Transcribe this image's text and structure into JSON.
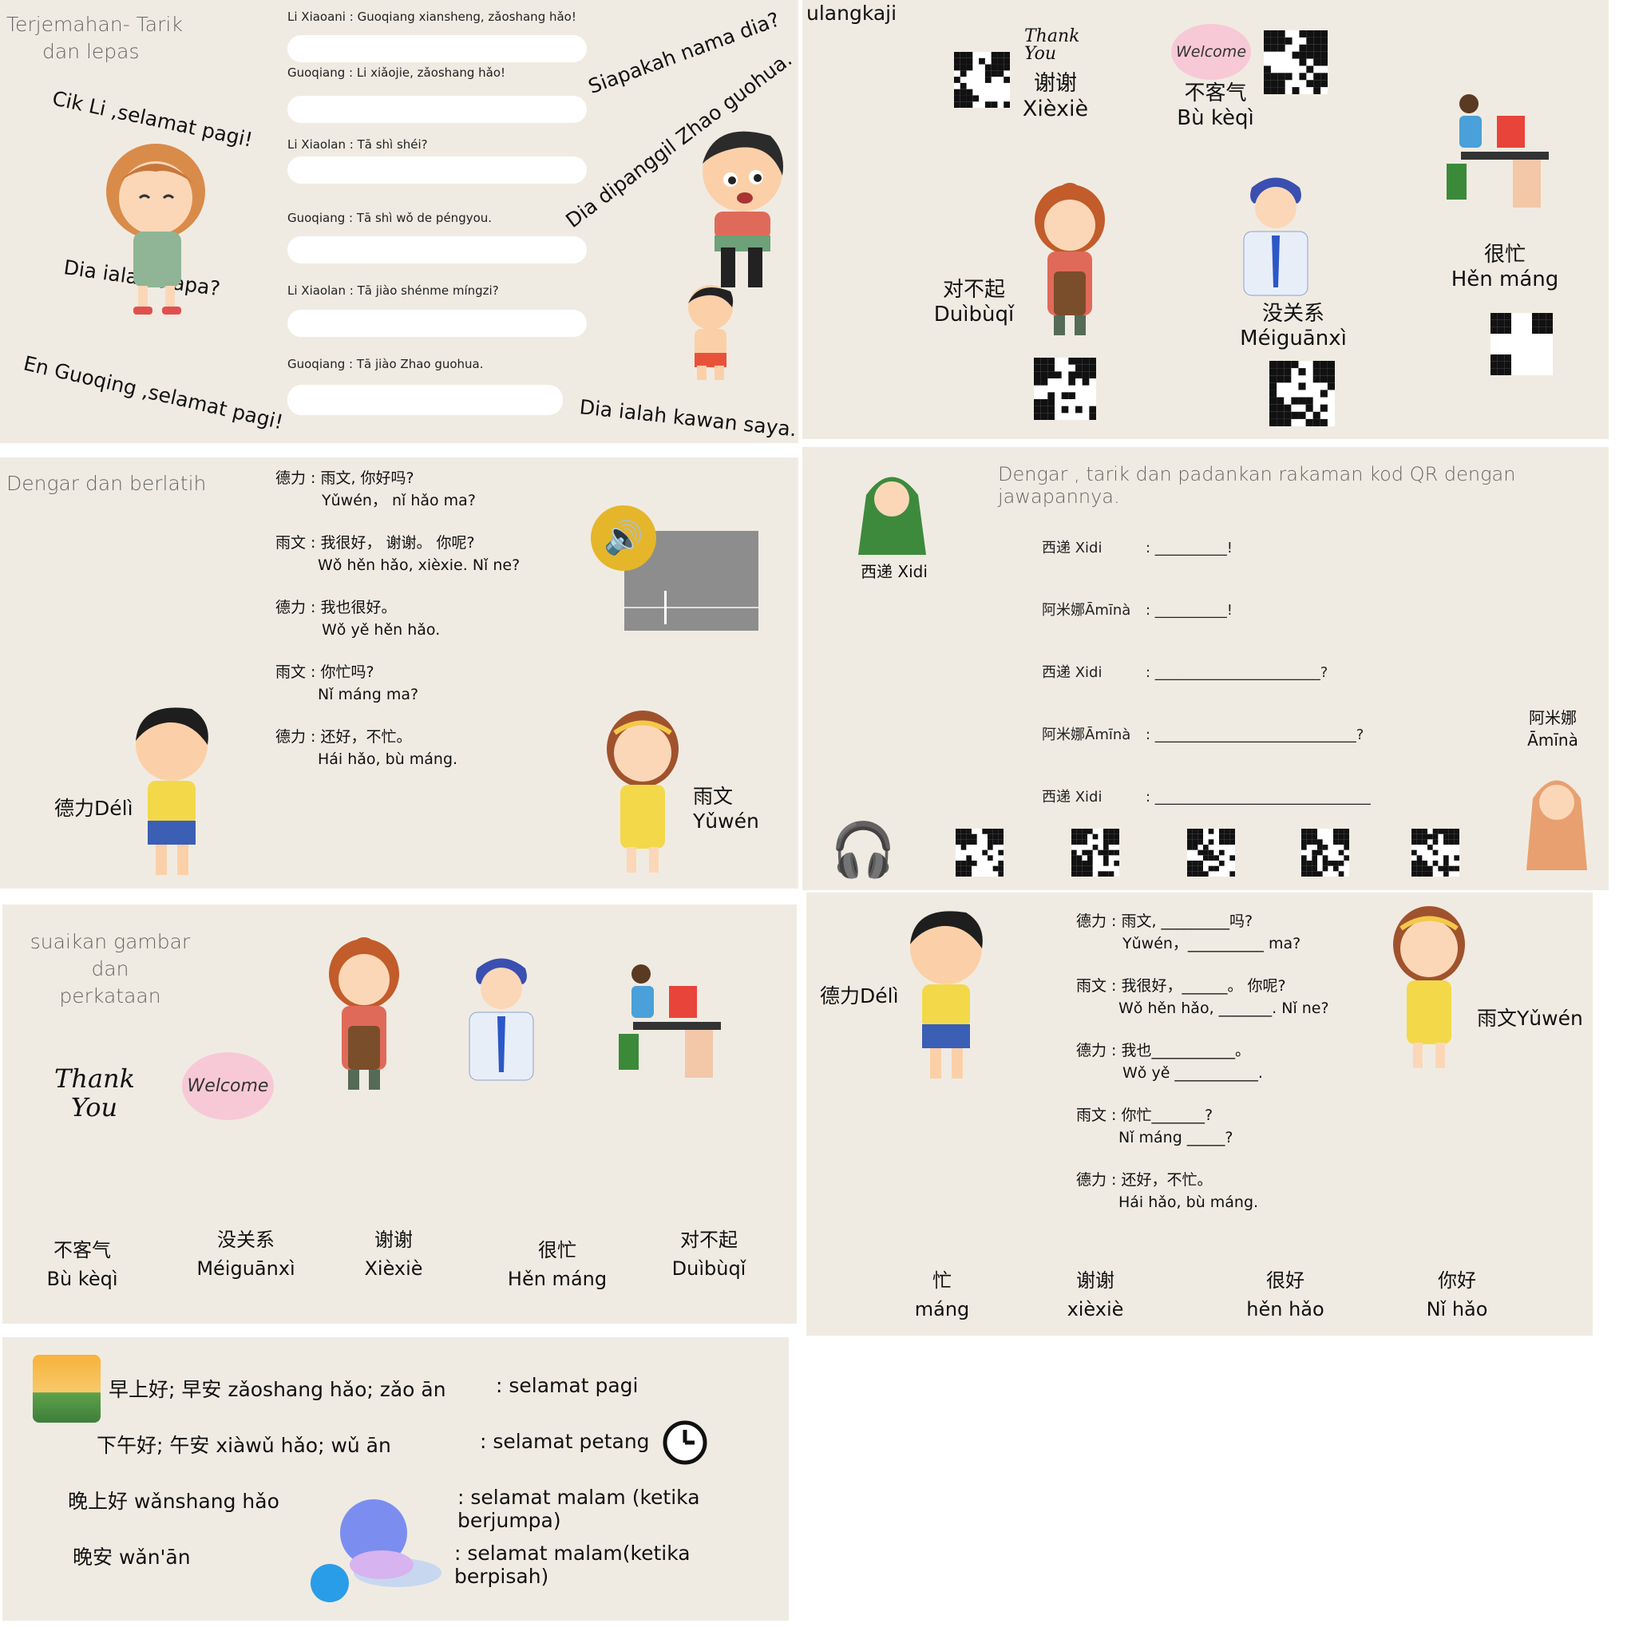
{
  "p1": {
    "heading_line1": "Terjemahan- Tarik",
    "heading_line2": "dan lepas",
    "labels": [
      "Cik Li ,selamat pagi!",
      "Dia ialah siapa?",
      "En Guoqing ,selamat pagi!",
      "Siapakah nama dia?",
      "Dia dipanggil Zhao guohua.",
      "Dia ialah kawan saya."
    ],
    "lines": [
      {
        "speaker": "Li Xiaoani",
        "text": ": Guoqiang xiansheng, zǎoshang hǎo!"
      },
      {
        "speaker": "Guoqiang",
        "text": ": Li xiǎojie, zǎoshang hǎo!"
      },
      {
        "speaker": "Li Xiaolan",
        "text": ": Tā shì shéi?"
      },
      {
        "speaker": "Guoqiang",
        "text": ": Tā shì wǒ de péngyou."
      },
      {
        "speaker": "Li Xiaolan",
        "text": ": Tā jiào shénme míngzi?"
      },
      {
        "speaker": "Guoqiang",
        "text": ": Tā jiào Zhao guohua."
      }
    ]
  },
  "p2": {
    "heading": "ulangkaji",
    "items": [
      {
        "cn": "谢谢",
        "py": "Xièxiè"
      },
      {
        "cn": "不客气",
        "py": "Bù kèqì"
      },
      {
        "cn": "对不起",
        "py": "Duìbùqǐ"
      },
      {
        "cn": "没关系",
        "py": "Méiguānxì"
      },
      {
        "cn": "很忙",
        "py": "Hěn máng"
      }
    ]
  },
  "p3": {
    "heading": "Dengar dan berlatih",
    "lines": [
      {
        "cn": "德力 : 雨文, 你好吗?",
        "py": "Yǔwén，  nǐ hǎo ma?"
      },
      {
        "cn": "雨文 : 我很好，  谢谢。 你呢?",
        "py": "Wǒ hěn hǎo, xièxie. Nǐ ne?"
      },
      {
        "cn": "德力 : 我也很好。",
        "py": "Wǒ yě hěn hǎo."
      },
      {
        "cn": "雨文 : 你忙吗?",
        "py": "Nǐ máng ma?"
      },
      {
        "cn": "德力 : 还好，不忙。",
        "py": "Hái hǎo, bù máng."
      }
    ],
    "deli": "德力Délì",
    "yuwen": "雨文Yǔwén"
  },
  "p4": {
    "heading": "Dengar , tarik dan padankan rakaman kod QR dengan jawapannya.",
    "xidi_caption": "西递 Xidi",
    "amina_caption_cn": "阿米娜",
    "amina_caption_py": "Āmīnà",
    "rows": [
      {
        "speaker": "西递 Xidi",
        "text": ":  __________!"
      },
      {
        "speaker": "阿米娜Āmīnà",
        "text": ":  __________!"
      },
      {
        "speaker": "西递 Xidi",
        "text": ":  _______________________?"
      },
      {
        "speaker": "阿米娜Āmīnà",
        "text": ":  ____________________________?"
      },
      {
        "speaker": "西递 Xidi",
        "text": ":  ______________________________"
      }
    ]
  },
  "p5": {
    "heading_line1": "suaikan gambar dan",
    "heading_line2": "perkataan",
    "words": [
      {
        "cn": "不客气",
        "py": "Bù kèqì"
      },
      {
        "cn": "没关系",
        "py": "Méiguānxì"
      },
      {
        "cn": "谢谢",
        "py": "Xièxiè"
      },
      {
        "cn": "很忙",
        "py": "Hěn máng"
      },
      {
        "cn": "对不起",
        "py": "Duìbùqǐ"
      }
    ]
  },
  "p6": {
    "deli": "德力Délì",
    "yuwen": "雨文Yǔwén",
    "lines": [
      {
        "cn": "德力 : 雨文, _________吗?",
        "py": "Yǔwén，__________ ma?"
      },
      {
        "cn": "雨文 : 我很好，______。 你呢?",
        "py": "Wǒ hěn hǎo, _______. Nǐ ne?"
      },
      {
        "cn": "德力 : 我也___________。",
        "py": "Wǒ yě ___________."
      },
      {
        "cn": "雨文 : 你忙_______?",
        "py": "Nǐ máng _____?"
      },
      {
        "cn": "德力 : 还好，不忙。",
        "py": "Hái hǎo, bù máng."
      }
    ],
    "words": [
      {
        "cn": "忙",
        "py": "máng"
      },
      {
        "cn": "谢谢",
        "py": "xièxiè"
      },
      {
        "cn": "很好",
        "py": "hěn hǎo"
      },
      {
        "cn": "你好",
        "py": "Nǐ hǎo"
      }
    ]
  },
  "p7": {
    "rows": [
      {
        "left": "早上好;  早安 zǎoshang hǎo; zǎo ān",
        "right": ":  selamat pagi"
      },
      {
        "left": "下午好;  午安 xiàwǔ hǎo; wǔ ān",
        "right": ":  selamat petang"
      },
      {
        "left": "晚上好 wǎnshang hǎo",
        "right": ": selamat malam (ketika berjumpa)"
      },
      {
        "left": "晚安  wǎn'ān",
        "right": ": selamat malam(ketika berpisah)"
      }
    ]
  },
  "images": {
    "thank_you": "Thank You",
    "welcome": "Welcome"
  }
}
